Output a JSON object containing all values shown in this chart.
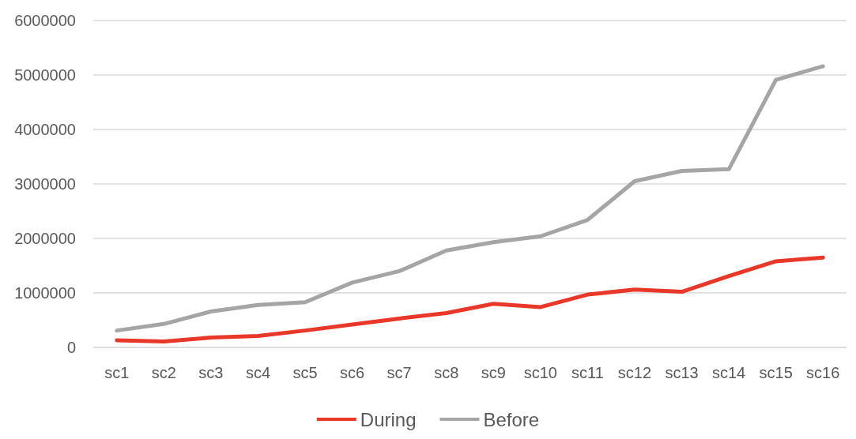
{
  "chart_data": {
    "type": "line",
    "categories": [
      "sc1",
      "sc2",
      "sc3",
      "sc4",
      "sc5",
      "sc6",
      "sc7",
      "sc8",
      "sc9",
      "sc10",
      "sc11",
      "sc12",
      "sc13",
      "sc14",
      "sc15",
      "sc16"
    ],
    "series": [
      {
        "name": "During",
        "color": "#e8382a",
        "values": [
          130000,
          110000,
          180000,
          210000,
          310000,
          420000,
          530000,
          630000,
          800000,
          740000,
          970000,
          1060000,
          1020000,
          1310000,
          1580000,
          1650000
        ]
      },
      {
        "name": "Before",
        "color": "#a5a5a5",
        "values": [
          310000,
          430000,
          660000,
          780000,
          830000,
          1190000,
          1400000,
          1780000,
          1930000,
          2040000,
          2340000,
          3050000,
          3240000,
          3270000,
          4910000,
          5160000
        ]
      }
    ],
    "ylim": [
      0,
      6000000
    ],
    "yticks": [
      0,
      1000000,
      2000000,
      3000000,
      4000000,
      5000000,
      6000000
    ],
    "grid": "y",
    "legend": "bottom",
    "marker": "none",
    "line_style": "solid"
  }
}
